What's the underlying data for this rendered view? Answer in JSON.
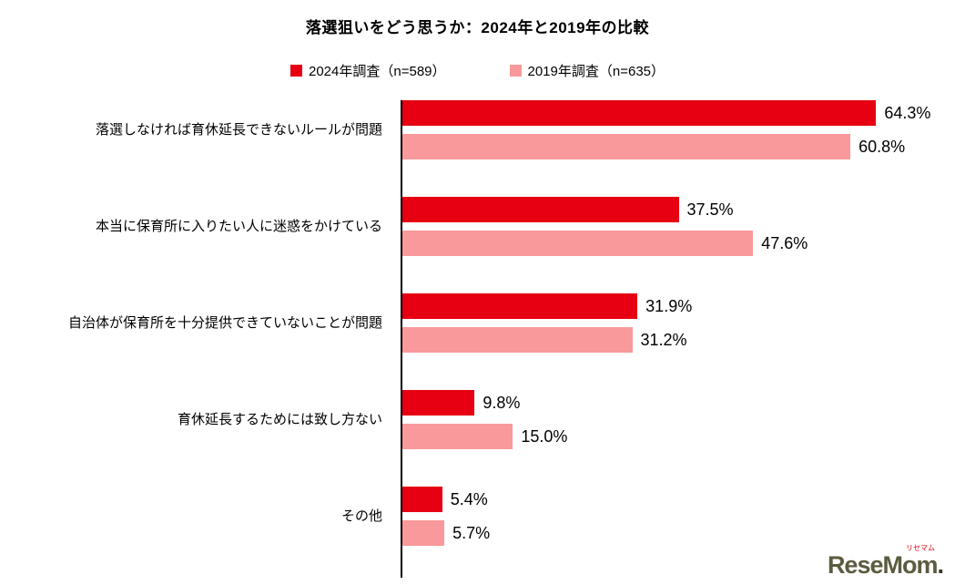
{
  "title": "落選狙いをどう思うか：2024年と2019年の比較",
  "legend": {
    "items": [
      {
        "label": "2024年調査（n=589）",
        "color": "#e60012"
      },
      {
        "label": "2019年調査（n=635）",
        "color": "#f9999b"
      }
    ]
  },
  "chart_data": {
    "type": "bar",
    "orientation": "horizontal",
    "title": "落選狙いをどう思うか：2024年と2019年の比較",
    "categories": [
      "落選しなければ育休延長できないルールが問題",
      "本当に保育所に入りたい人に迷惑をかけている",
      "自治体が保育所を十分提供できていないことが問題",
      "育休延長するためには致し方ない",
      "その他"
    ],
    "series": [
      {
        "name": "2024年調査（n=589）",
        "color": "#e60012",
        "values": [
          64.3,
          37.5,
          31.9,
          9.8,
          5.4
        ]
      },
      {
        "name": "2019年調査（n=635）",
        "color": "#f9999b",
        "values": [
          60.8,
          47.6,
          31.2,
          15.0,
          5.7
        ]
      }
    ],
    "value_suffix": "%",
    "xlim": [
      0,
      75
    ],
    "grid": false,
    "legend_position": "top"
  },
  "logo": {
    "main": "ReseMom",
    "dot": ".",
    "sub": "リセマム"
  }
}
